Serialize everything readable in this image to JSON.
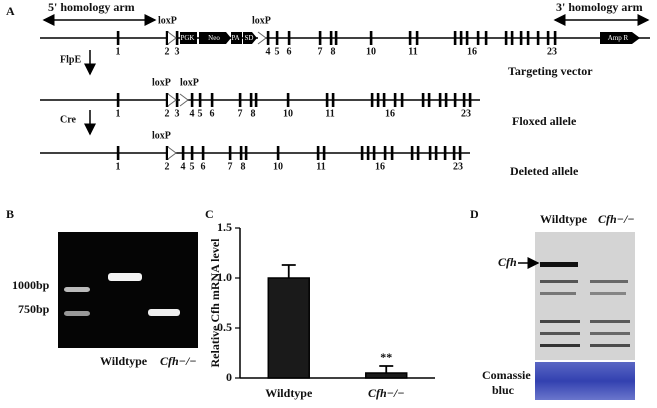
{
  "panel_labels": [
    "A",
    "B",
    "C",
    "D"
  ],
  "diagram": {
    "five_prime_arm": "5' homology arm",
    "three_prime_arm": "3' homology arm",
    "tracks": [
      {
        "name": "Targeting vector",
        "loxp": [
          "loxP",
          "loxP"
        ],
        "cassette": [
          "PGK",
          "Neo",
          "PA",
          "SD"
        ],
        "marker": "Amp R",
        "exons": [
          "1",
          "2",
          "3",
          "4",
          "5",
          "6",
          "7",
          "8",
          "10",
          "11",
          "16",
          "23"
        ]
      },
      {
        "name": "Floxed allele",
        "step": "FlpE",
        "loxp": [
          "loxP",
          "loxP"
        ],
        "exons": [
          "1",
          "2",
          "3",
          "4",
          "5",
          "6",
          "7",
          "8",
          "10",
          "11",
          "16",
          "23"
        ]
      },
      {
        "name": "Deleted allele",
        "step": "Cre",
        "loxp": [
          "loxP"
        ],
        "exons": [
          "1",
          "2",
          "4",
          "5",
          "6",
          "7",
          "8",
          "10",
          "11",
          "16",
          "23"
        ]
      }
    ]
  },
  "gel": {
    "markers": [
      "1000bp",
      "750bp"
    ],
    "lanes": [
      "Wildtype",
      "Cfh−/−"
    ]
  },
  "chart_data": {
    "type": "bar",
    "ylabel": "Relative Cfh mRNA level",
    "categories": [
      "Wildtype",
      "Cfh−/−"
    ],
    "values": [
      1.0,
      0.05
    ],
    "errors": [
      0.13,
      0.07
    ],
    "value_annotations": [
      null,
      "**"
    ],
    "color": "#1a1a1a",
    "ylim": [
      0,
      1.5
    ],
    "yticks": [
      0,
      0.5,
      {
        "value": 1,
        "label": "1.0"
      },
      1.5
    ]
  },
  "blot": {
    "lanes": [
      "Wildtype",
      "Cfh−/−"
    ],
    "band_label": "Cfh",
    "stain": [
      "Comassie",
      "bluc"
    ]
  }
}
